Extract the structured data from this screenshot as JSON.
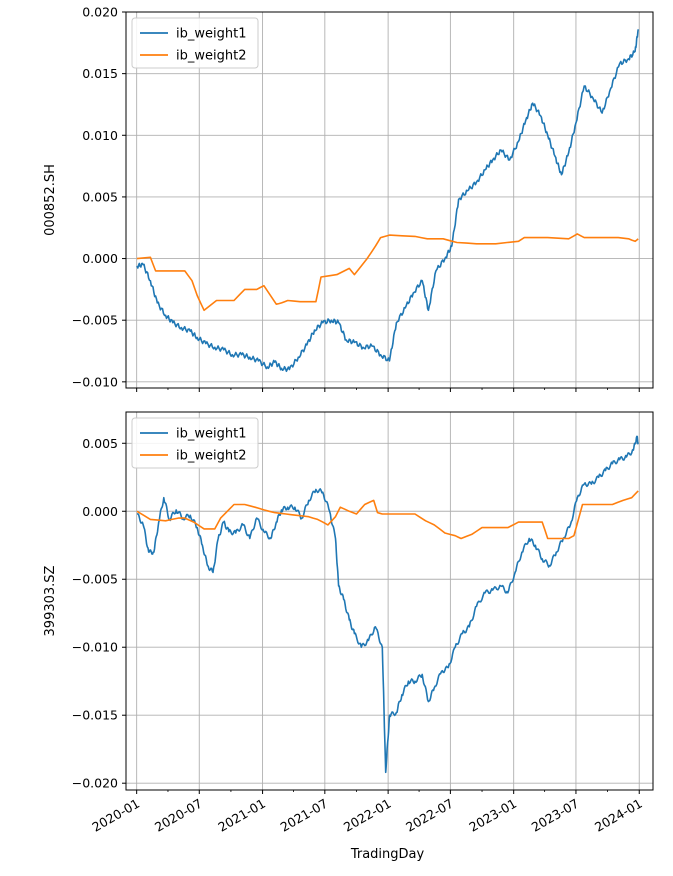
{
  "chart_data": [
    {
      "type": "line",
      "ylabel": "000852.SH",
      "xlabel": "",
      "x_ticks": [
        "2020-01",
        "2020-07",
        "2021-01",
        "2021-07",
        "2022-01",
        "2022-07",
        "2023-01",
        "2023-07",
        "2024-01"
      ],
      "y_ticks": [
        "0.020",
        "0.015",
        "0.010",
        "0.005",
        "0.000",
        "−0.005",
        "−0.010"
      ],
      "ylim": [
        -0.0105,
        0.02
      ],
      "grid": true,
      "legend": "upper-left",
      "series": [
        {
          "name": "ib_weight1",
          "color": "#1f77b4",
          "x": [
            "2020-01-02",
            "2020-01-20",
            "2020-02-10",
            "2020-03-01",
            "2020-03-25",
            "2020-04-15",
            "2020-05-10",
            "2020-06-05",
            "2020-06-25",
            "2020-07-20",
            "2020-08-15",
            "2020-09-10",
            "2020-10-05",
            "2020-11-01",
            "2020-11-25",
            "2020-12-20",
            "2021-01-15",
            "2021-02-05",
            "2021-02-25",
            "2021-03-20",
            "2021-04-15",
            "2021-05-10",
            "2021-06-01",
            "2021-06-25",
            "2021-07-20",
            "2021-08-10",
            "2021-09-01",
            "2021-09-25",
            "2021-10-20",
            "2021-11-15",
            "2021-12-10",
            "2022-01-05",
            "2022-01-25",
            "2022-02-20",
            "2022-03-15",
            "2022-04-10",
            "2022-04-28",
            "2022-05-20",
            "2022-06-15",
            "2022-07-05",
            "2022-07-25",
            "2022-08-20",
            "2022-09-15",
            "2022-10-10",
            "2022-11-01",
            "2022-11-25",
            "2022-12-20",
            "2023-01-15",
            "2023-02-05",
            "2023-02-25",
            "2023-03-20",
            "2023-04-10",
            "2023-05-01",
            "2023-05-20",
            "2023-06-10",
            "2023-07-01",
            "2023-07-25",
            "2023-08-20",
            "2023-09-15",
            "2023-10-10",
            "2023-11-05",
            "2023-12-01",
            "2023-12-20",
            "2023-12-29"
          ],
          "values": [
            -0.0006,
            -0.0005,
            -0.0018,
            -0.0036,
            -0.0046,
            -0.0052,
            -0.0056,
            -0.0059,
            -0.0064,
            -0.0069,
            -0.0072,
            -0.0074,
            -0.0078,
            -0.0078,
            -0.008,
            -0.0083,
            -0.0088,
            -0.0084,
            -0.0089,
            -0.009,
            -0.008,
            -0.007,
            -0.0058,
            -0.0052,
            -0.005,
            -0.0052,
            -0.0066,
            -0.0068,
            -0.0072,
            -0.0071,
            -0.0078,
            -0.0083,
            -0.0052,
            -0.004,
            -0.0028,
            -0.0018,
            -0.0042,
            -0.001,
            0.0,
            0.001,
            0.0048,
            0.0055,
            0.0062,
            0.0072,
            0.008,
            0.0088,
            0.008,
            0.0095,
            0.0112,
            0.0126,
            0.0116,
            0.01,
            0.0083,
            0.0068,
            0.0086,
            0.011,
            0.014,
            0.013,
            0.0118,
            0.0138,
            0.0158,
            0.0162,
            0.0168,
            0.0186
          ]
        },
        {
          "name": "ib_weight2",
          "color": "#ff7f0e",
          "x": [
            "2020-01-02",
            "2020-02-10",
            "2020-02-25",
            "2020-05-20",
            "2020-06-10",
            "2020-06-25",
            "2020-07-15",
            "2020-08-20",
            "2020-09-15",
            "2020-10-10",
            "2020-11-10",
            "2020-12-15",
            "2021-01-05",
            "2021-02-10",
            "2021-02-25",
            "2021-03-15",
            "2021-04-20",
            "2021-06-05",
            "2021-06-20",
            "2021-08-05",
            "2021-09-10",
            "2021-09-25",
            "2021-11-01",
            "2021-11-25",
            "2021-12-10",
            "2022-01-05",
            "2022-03-20",
            "2022-04-25",
            "2022-06-10",
            "2022-07-20",
            "2022-09-15",
            "2022-11-10",
            "2023-01-15",
            "2023-02-01",
            "2023-04-10",
            "2023-06-10",
            "2023-07-05",
            "2023-07-25",
            "2023-09-01",
            "2023-11-01",
            "2023-12-01",
            "2023-12-20",
            "2023-12-29"
          ],
          "values": [
            0.0,
            0.0001,
            -0.001,
            -0.001,
            -0.0018,
            -0.003,
            -0.0042,
            -0.0034,
            -0.0034,
            -0.0034,
            -0.0025,
            -0.0025,
            -0.0022,
            -0.0037,
            -0.0036,
            -0.0034,
            -0.0035,
            -0.0035,
            -0.0015,
            -0.0013,
            -0.0008,
            -0.0013,
            0.0,
            0.001,
            0.0017,
            0.0019,
            0.0018,
            0.0016,
            0.0016,
            0.0013,
            0.0012,
            0.0012,
            0.0014,
            0.0017,
            0.0017,
            0.0016,
            0.002,
            0.0017,
            0.0017,
            0.0017,
            0.0016,
            0.0014,
            0.0016
          ]
        }
      ]
    },
    {
      "type": "line",
      "ylabel": "399303.SZ",
      "xlabel": "TradingDay",
      "x_ticks": [
        "2020-01",
        "2020-07",
        "2021-01",
        "2021-07",
        "2022-01",
        "2022-07",
        "2023-01",
        "2023-07",
        "2024-01"
      ],
      "y_ticks": [
        "0.005",
        "0.000",
        "−0.005",
        "−0.010",
        "−0.015",
        "−0.020"
      ],
      "ylim": [
        -0.0205,
        0.0073
      ],
      "grid": true,
      "legend": "upper-left",
      "series": [
        {
          "name": "ib_weight1",
          "color": "#1f77b4",
          "x": [
            "2020-01-02",
            "2020-01-20",
            "2020-02-05",
            "2020-02-20",
            "2020-03-05",
            "2020-03-20",
            "2020-04-05",
            "2020-04-25",
            "2020-05-15",
            "2020-06-05",
            "2020-06-25",
            "2020-07-10",
            "2020-07-25",
            "2020-08-10",
            "2020-08-25",
            "2020-09-10",
            "2020-09-25",
            "2020-10-15",
            "2020-11-05",
            "2020-11-25",
            "2020-12-15",
            "2021-01-05",
            "2021-01-25",
            "2021-02-10",
            "2021-02-25",
            "2021-03-15",
            "2021-04-05",
            "2021-04-25",
            "2021-05-15",
            "2021-06-05",
            "2021-06-25",
            "2021-07-15",
            "2021-08-01",
            "2021-08-10",
            "2021-08-25",
            "2021-09-10",
            "2021-09-25",
            "2021-10-15",
            "2021-11-05",
            "2021-11-25",
            "2021-12-15",
            "2021-12-25",
            "2022-01-05",
            "2022-01-25",
            "2022-02-10",
            "2022-03-01",
            "2022-03-20",
            "2022-04-10",
            "2022-04-28",
            "2022-05-15",
            "2022-06-05",
            "2022-06-25",
            "2022-07-15",
            "2022-08-05",
            "2022-08-25",
            "2022-09-15",
            "2022-10-10",
            "2022-11-01",
            "2022-11-25",
            "2022-12-15",
            "2023-01-05",
            "2023-01-25",
            "2023-02-15",
            "2023-03-05",
            "2023-03-25",
            "2023-04-15",
            "2023-05-05",
            "2023-05-25",
            "2023-06-15",
            "2023-07-05",
            "2023-07-25",
            "2023-08-15",
            "2023-09-05",
            "2023-09-25",
            "2023-10-15",
            "2023-11-05",
            "2023-11-25",
            "2023-12-15",
            "2023-12-25",
            "2023-12-29"
          ],
          "values": [
            -0.0002,
            -0.001,
            -0.003,
            -0.003,
            -0.0008,
            0.001,
            -0.0006,
            0.0001,
            -0.0005,
            -0.0003,
            -0.0012,
            -0.0025,
            -0.004,
            -0.0045,
            -0.002,
            -0.0008,
            -0.0015,
            -0.0016,
            -0.001,
            -0.002,
            -0.0005,
            -0.0015,
            -0.002,
            -0.0008,
            0.0001,
            0.0003,
            0.0003,
            -0.0005,
            0.0008,
            0.0016,
            0.0014,
            0.0,
            -0.002,
            -0.0055,
            -0.0065,
            -0.008,
            -0.009,
            -0.01,
            -0.0095,
            -0.0085,
            -0.01,
            -0.0192,
            -0.015,
            -0.0148,
            -0.0135,
            -0.0125,
            -0.0125,
            -0.012,
            -0.014,
            -0.013,
            -0.0118,
            -0.0115,
            -0.01,
            -0.009,
            -0.0085,
            -0.007,
            -0.006,
            -0.0058,
            -0.0055,
            -0.006,
            -0.0045,
            -0.003,
            -0.002,
            -0.0025,
            -0.0035,
            -0.004,
            -0.003,
            -0.002,
            -0.001,
            0.001,
            0.002,
            0.002,
            0.0025,
            0.003,
            0.0035,
            0.0038,
            0.004,
            0.0045,
            0.0055,
            0.005
          ]
        },
        {
          "name": "ib_weight2",
          "color": "#ff7f0e",
          "x": [
            "2020-01-02",
            "2020-02-10",
            "2020-03-25",
            "2020-05-01",
            "2020-05-20",
            "2020-06-15",
            "2020-07-15",
            "2020-08-15",
            "2020-09-01",
            "2020-10-10",
            "2020-11-10",
            "2020-12-10",
            "2021-01-05",
            "2021-02-05",
            "2021-03-10",
            "2021-04-10",
            "2021-05-15",
            "2021-06-10",
            "2021-07-10",
            "2021-08-01",
            "2021-08-15",
            "2021-09-10",
            "2021-10-01",
            "2021-10-25",
            "2021-11-20",
            "2021-12-01",
            "2021-12-15",
            "2022-01-10",
            "2022-02-15",
            "2022-03-20",
            "2022-04-20",
            "2022-05-15",
            "2022-06-15",
            "2022-07-15",
            "2022-08-01",
            "2022-09-01",
            "2022-10-01",
            "2022-11-10",
            "2022-12-15",
            "2023-01-15",
            "2023-02-15",
            "2023-03-25",
            "2023-04-10",
            "2023-05-10",
            "2023-06-10",
            "2023-06-25",
            "2023-07-20",
            "2023-09-01",
            "2023-10-15",
            "2023-11-15",
            "2023-12-10",
            "2023-12-29"
          ],
          "values": [
            0.0,
            -0.0006,
            -0.0007,
            -0.0005,
            -0.0005,
            -0.0008,
            -0.0013,
            -0.0013,
            -0.0005,
            0.0005,
            0.0005,
            0.0003,
            0.0001,
            -0.0001,
            -0.0002,
            -0.0003,
            -0.0004,
            -0.0006,
            -0.001,
            -0.0004,
            0.0003,
            0.0,
            -0.0002,
            0.0005,
            0.0008,
            -0.0001,
            -0.0002,
            -0.0002,
            -0.0002,
            -0.0002,
            -0.0007,
            -0.001,
            -0.0016,
            -0.0018,
            -0.002,
            -0.0017,
            -0.0012,
            -0.0012,
            -0.0012,
            -0.0008,
            -0.0008,
            -0.0008,
            -0.002,
            -0.002,
            -0.002,
            -0.0018,
            0.0005,
            0.0005,
            0.0005,
            0.0008,
            0.001,
            0.0015
          ]
        }
      ]
    }
  ]
}
